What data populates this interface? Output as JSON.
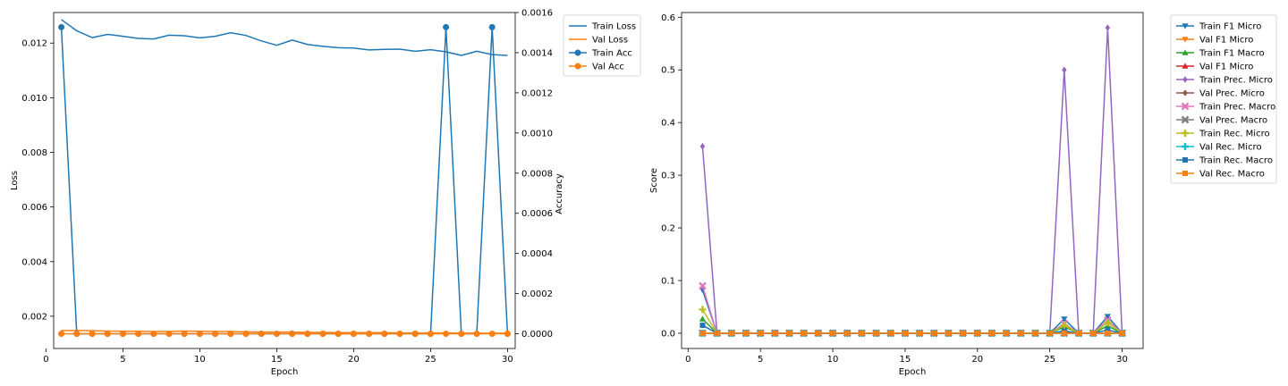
{
  "chart_data": [
    {
      "type": "line",
      "xlabel": "Epoch",
      "ylabel": "Loss",
      "ylabel_right": "Accuracy",
      "x": [
        1,
        2,
        3,
        4,
        5,
        6,
        7,
        8,
        9,
        10,
        11,
        12,
        13,
        14,
        15,
        16,
        17,
        18,
        19,
        20,
        21,
        22,
        23,
        24,
        25,
        26,
        27,
        28,
        29,
        30
      ],
      "xlim": [
        0.5,
        30.5
      ],
      "ylim": [
        0.00082,
        0.01312
      ],
      "ylim_right": [
        -7.32e-05,
        0.0016
      ],
      "xticks": [
        0,
        5,
        10,
        15,
        20,
        25,
        30
      ],
      "yticks": [
        0.002,
        0.004,
        0.006,
        0.008,
        0.01,
        0.012
      ],
      "yticks_right": [
        0.0,
        0.0002,
        0.0004,
        0.0006,
        0.0008,
        0.001,
        0.0012,
        0.0014,
        0.0016
      ],
      "legend_position": "outside-top-right",
      "series": [
        {
          "name": "Train Loss",
          "axis": "left",
          "marker": "none",
          "color": "#1f77b4",
          "values": [
            0.01286,
            0.01245,
            0.0122,
            0.01232,
            0.01225,
            0.01217,
            0.01215,
            0.01229,
            0.01227,
            0.01219,
            0.01225,
            0.01238,
            0.01228,
            0.01208,
            0.01192,
            0.01211,
            0.01195,
            0.01188,
            0.01183,
            0.01182,
            0.01175,
            0.01177,
            0.01178,
            0.0117,
            0.01176,
            0.01168,
            0.01155,
            0.0117,
            0.01158,
            0.01155
          ]
        },
        {
          "name": "Val Loss",
          "axis": "left",
          "marker": "none",
          "color": "#ff7f0e",
          "values": [
            0.00148,
            0.00148,
            0.00147,
            0.00146,
            0.00145,
            0.00145,
            0.00144,
            0.00144,
            0.00146,
            0.00145,
            0.00144,
            0.00144,
            0.00143,
            0.00142,
            0.00142,
            0.00142,
            0.00141,
            0.00141,
            0.0014,
            0.0014,
            0.0014,
            0.0014,
            0.00139,
            0.00139,
            0.00139,
            0.00139,
            0.00138,
            0.00138,
            0.00138,
            0.00138
          ]
        },
        {
          "name": "Train Acc",
          "axis": "right",
          "marker": "circle",
          "color": "#1f77b4",
          "values": [
            0.001527,
            0,
            0,
            0,
            0,
            0,
            0,
            0,
            0,
            0,
            0,
            0,
            0,
            0,
            0,
            0,
            0,
            0,
            0,
            0,
            0,
            0,
            0,
            0,
            0,
            0.001527,
            0,
            0,
            0.001527,
            0
          ]
        },
        {
          "name": "Val Acc",
          "axis": "right",
          "marker": "circle",
          "color": "#ff7f0e",
          "values": [
            0,
            0,
            0,
            0,
            0,
            0,
            0,
            0,
            0,
            0,
            0,
            0,
            0,
            0,
            0,
            0,
            0,
            0,
            0,
            0,
            0,
            0,
            0,
            0,
            0,
            0,
            0,
            0,
            0,
            0
          ]
        }
      ]
    },
    {
      "type": "line",
      "xlabel": "Epoch",
      "ylabel": "Score",
      "x": [
        1,
        2,
        3,
        4,
        5,
        6,
        7,
        8,
        9,
        10,
        11,
        12,
        13,
        14,
        15,
        16,
        17,
        18,
        19,
        20,
        21,
        22,
        23,
        24,
        25,
        26,
        27,
        28,
        29,
        30
      ],
      "xlim": [
        -0.45,
        31.45
      ],
      "ylim": [
        -0.029,
        0.609
      ],
      "xticks": [
        0,
        5,
        10,
        15,
        20,
        25,
        30
      ],
      "yticks": [
        0.0,
        0.1,
        0.2,
        0.3,
        0.4,
        0.5,
        0.6
      ],
      "legend_position": "outside-top-right",
      "series": [
        {
          "name": "Train F1 Micro",
          "marker": "tri-down",
          "color": "#1f77b4",
          "values": [
            0.082,
            0,
            0,
            0,
            0,
            0,
            0,
            0,
            0,
            0,
            0,
            0,
            0,
            0,
            0,
            0,
            0,
            0,
            0,
            0,
            0,
            0,
            0,
            0,
            0,
            0.027,
            0,
            0,
            0.032,
            0
          ]
        },
        {
          "name": "Val F1 Micro",
          "marker": "tri-down",
          "color": "#ff7f0e",
          "values": [
            0,
            0,
            0,
            0,
            0,
            0,
            0,
            0,
            0,
            0,
            0,
            0,
            0,
            0,
            0,
            0,
            0,
            0,
            0,
            0,
            0,
            0,
            0,
            0,
            0,
            0,
            0,
            0,
            0,
            0
          ]
        },
        {
          "name": "Train F1 Macro",
          "marker": "tri-up",
          "color": "#2ca02c",
          "values": [
            0.027,
            0,
            0,
            0,
            0,
            0,
            0,
            0,
            0,
            0,
            0,
            0,
            0,
            0,
            0,
            0,
            0,
            0,
            0,
            0,
            0,
            0,
            0,
            0,
            0,
            0.012,
            0,
            0,
            0.014,
            0
          ]
        },
        {
          "name": "Val F1 Micro",
          "marker": "tri-up",
          "color": "#d62728",
          "values": [
            0,
            0,
            0,
            0,
            0,
            0,
            0,
            0,
            0,
            0,
            0,
            0,
            0,
            0,
            0,
            0,
            0,
            0,
            0,
            0,
            0,
            0,
            0,
            0,
            0,
            0,
            0,
            0,
            0,
            0
          ]
        },
        {
          "name": "Train Prec. Micro",
          "marker": "diamond",
          "color": "#9467bd",
          "values": [
            0.355,
            0,
            0,
            0,
            0,
            0,
            0,
            0,
            0,
            0,
            0,
            0,
            0,
            0,
            0,
            0,
            0,
            0,
            0,
            0,
            0,
            0,
            0,
            0,
            0,
            0.5,
            0,
            0,
            0.58,
            0
          ]
        },
        {
          "name": "Val Prec. Micro",
          "marker": "diamond",
          "color": "#8c564b",
          "values": [
            0,
            0,
            0,
            0,
            0,
            0,
            0,
            0,
            0,
            0,
            0,
            0,
            0,
            0,
            0,
            0,
            0,
            0,
            0,
            0,
            0,
            0,
            0,
            0,
            0,
            0,
            0,
            0,
            0,
            0
          ]
        },
        {
          "name": "Train Prec. Macro",
          "marker": "x",
          "color": "#e377c2",
          "values": [
            0.09,
            0,
            0,
            0,
            0,
            0,
            0,
            0,
            0,
            0,
            0,
            0,
            0,
            0,
            0,
            0,
            0,
            0,
            0,
            0,
            0,
            0,
            0,
            0,
            0,
            0.018,
            0,
            0,
            0.025,
            0
          ]
        },
        {
          "name": "Val Prec. Macro",
          "marker": "x",
          "color": "#7f7f7f",
          "values": [
            0,
            0,
            0,
            0,
            0,
            0,
            0,
            0,
            0,
            0,
            0,
            0,
            0,
            0,
            0,
            0,
            0,
            0,
            0,
            0,
            0,
            0,
            0,
            0,
            0,
            0,
            0,
            0,
            0,
            0
          ]
        },
        {
          "name": "Train Rec. Micro",
          "marker": "plus",
          "color": "#bcbd22",
          "values": [
            0.045,
            0,
            0,
            0,
            0,
            0,
            0,
            0,
            0,
            0,
            0,
            0,
            0,
            0,
            0,
            0,
            0,
            0,
            0,
            0,
            0,
            0,
            0,
            0,
            0,
            0.015,
            0,
            0,
            0.02,
            0
          ]
        },
        {
          "name": "Val Rec. Micro",
          "marker": "plus",
          "color": "#17becf",
          "values": [
            0,
            0,
            0,
            0,
            0,
            0,
            0,
            0,
            0,
            0,
            0,
            0,
            0,
            0,
            0,
            0,
            0,
            0,
            0,
            0,
            0,
            0,
            0,
            0,
            0,
            0,
            0,
            0,
            0,
            0
          ]
        },
        {
          "name": "Train Rec. Macro",
          "marker": "square",
          "color": "#1f77b4",
          "values": [
            0.015,
            0,
            0,
            0,
            0,
            0,
            0,
            0,
            0,
            0,
            0,
            0,
            0,
            0,
            0,
            0,
            0,
            0,
            0,
            0,
            0,
            0,
            0,
            0,
            0,
            0.004,
            0,
            0,
            0.006,
            0
          ]
        },
        {
          "name": "Val Rec. Macro",
          "marker": "square",
          "color": "#ff7f0e",
          "values": [
            0,
            0,
            0,
            0,
            0,
            0,
            0,
            0,
            0,
            0,
            0,
            0,
            0,
            0,
            0,
            0,
            0,
            0,
            0,
            0,
            0,
            0,
            0,
            0,
            0,
            0,
            0,
            0,
            0,
            0
          ]
        }
      ]
    }
  ]
}
